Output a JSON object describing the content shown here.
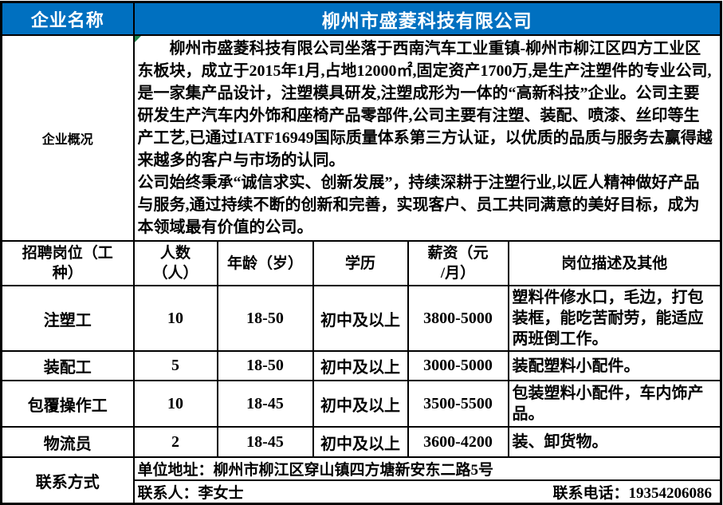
{
  "company": {
    "name_label": "企业名称",
    "name": "柳州市盛菱科技有限公司",
    "profile_label": "企业概况",
    "profile_p1": "柳州市盛菱科技有限公司坐落于西南汽车工业重镇-柳州市柳江区四方工业区东板块，成立于2015年1月,占地12000㎡,固定资产1700万,是生产注塑件的专业公司,是一家集产品设计，注塑模具研发,注塑成形为一体的“高新科技”企业。公司主要研发生产汽车内外饰和座椅产品零部件,公司主要有注塑、装配、喷漆、丝印等生产工艺,已通过IATF16949国际质量体系第三方认证，以优质的品质与服务去赢得越来越多的客户与市场的认同。",
    "profile_p2": "公司始终秉承“诚信求实、创新发展”，持续深耕于注塑行业,以匠人精神做好产品与服务,通过持续不断的创新和完善，实现客户、员工共同满意的美好目标，成为本领域最有价值的公司。"
  },
  "job_table": {
    "headers": {
      "position": "招聘岗位（工\n种）",
      "count": "人数\n（人）",
      "age": "年龄（岁）",
      "education": "学历",
      "salary": "薪资（元\n/月）",
      "description": "岗位描述及其他"
    },
    "rows": [
      {
        "title": "注塑工",
        "count": "10",
        "age": "18-50",
        "education": "初中及以上",
        "salary": "3800-5000",
        "description": "塑料件修水口，毛边，打包装框，能吃苦耐劳，能适应两班倒工作。"
      },
      {
        "title": "装配工",
        "count": "5",
        "age": "18-50",
        "education": "初中及以上",
        "salary": "3000-5000",
        "description": "装配塑料小配件。"
      },
      {
        "title": "包覆操作工",
        "count": "10",
        "age": "18-45",
        "education": "初中及以上",
        "salary": "3500-5500",
        "description": "包装塑料小配件，车内饰产品。"
      },
      {
        "title": "物流员",
        "count": "2",
        "age": "18-45",
        "education": "初中及以上",
        "salary": "3600-4200",
        "description": "装、卸货物。"
      }
    ]
  },
  "contact": {
    "label": "联系方式",
    "address": "单位地址：柳州市柳江区穿山镇四方塘新安东二路5号",
    "person": "联系人：李女士",
    "phone": "联系电话：19354206086"
  },
  "colors": {
    "header_blue": "#0070C0",
    "border_black": "#000000",
    "error_indicator_green": "#1E8449"
  }
}
